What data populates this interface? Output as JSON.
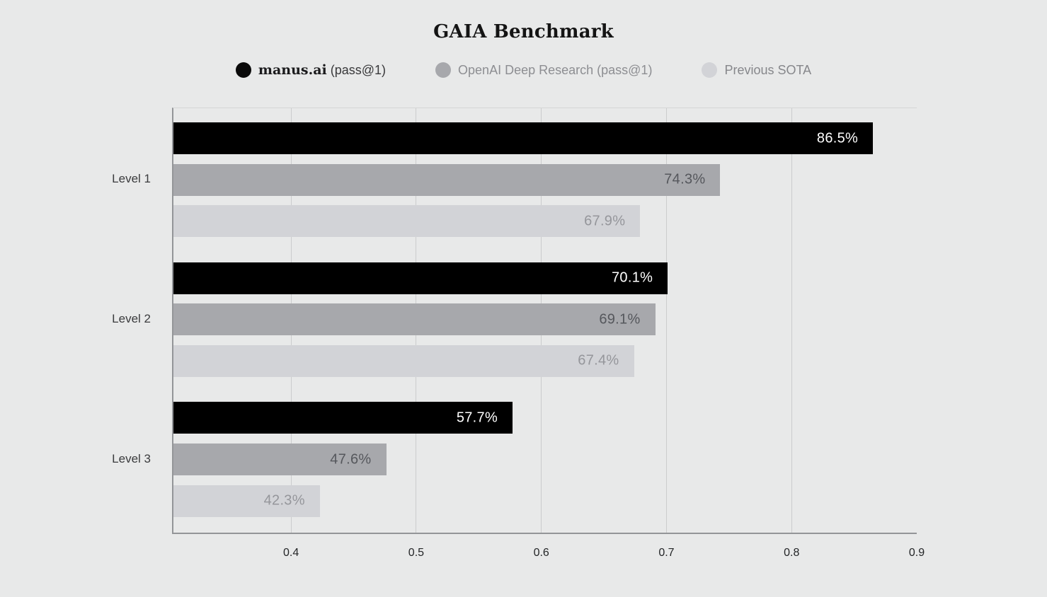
{
  "title": "GAIA Benchmark",
  "legend": {
    "items": [
      {
        "name": "manus.ai",
        "suffix": "(pass@1)",
        "color": "#0a0a0a"
      },
      {
        "label": "OpenAI Deep Research (pass@1)",
        "color": "#a7a8ac"
      },
      {
        "label": "Previous SOTA",
        "color": "#d2d3d7"
      }
    ]
  },
  "chart_data": {
    "type": "bar",
    "orientation": "horizontal",
    "title": "GAIA Benchmark",
    "categories": [
      "Level 1",
      "Level 2",
      "Level 3"
    ],
    "series": [
      {
        "name": "manus.ai (pass@1)",
        "color": "#000000",
        "label_color": "#ffffff",
        "values": [
          0.865,
          0.701,
          0.577
        ],
        "labels": [
          "86.5%",
          "70.1%",
          "57.7%"
        ]
      },
      {
        "name": "OpenAI Deep Research (pass@1)",
        "color": "#a7a8ac",
        "label_color": "#55575c",
        "values": [
          0.743,
          0.691,
          0.476
        ],
        "labels": [
          "74.3%",
          "69.1%",
          "47.6%"
        ]
      },
      {
        "name": "Previous SOTA",
        "color": "#d2d3d7",
        "label_color": "#95969b",
        "values": [
          0.679,
          0.674,
          0.423
        ],
        "labels": [
          "67.9%",
          "67.4%",
          "42.3%"
        ]
      }
    ],
    "xlim": [
      0.306,
      0.9
    ],
    "x_ticks": [
      0.4,
      0.5,
      0.6,
      0.7,
      0.8,
      0.9
    ],
    "x_tick_labels": [
      "0.4",
      "0.5",
      "0.6",
      "0.7",
      "0.8",
      "0.9"
    ],
    "grid": true,
    "legend_position": "top"
  }
}
